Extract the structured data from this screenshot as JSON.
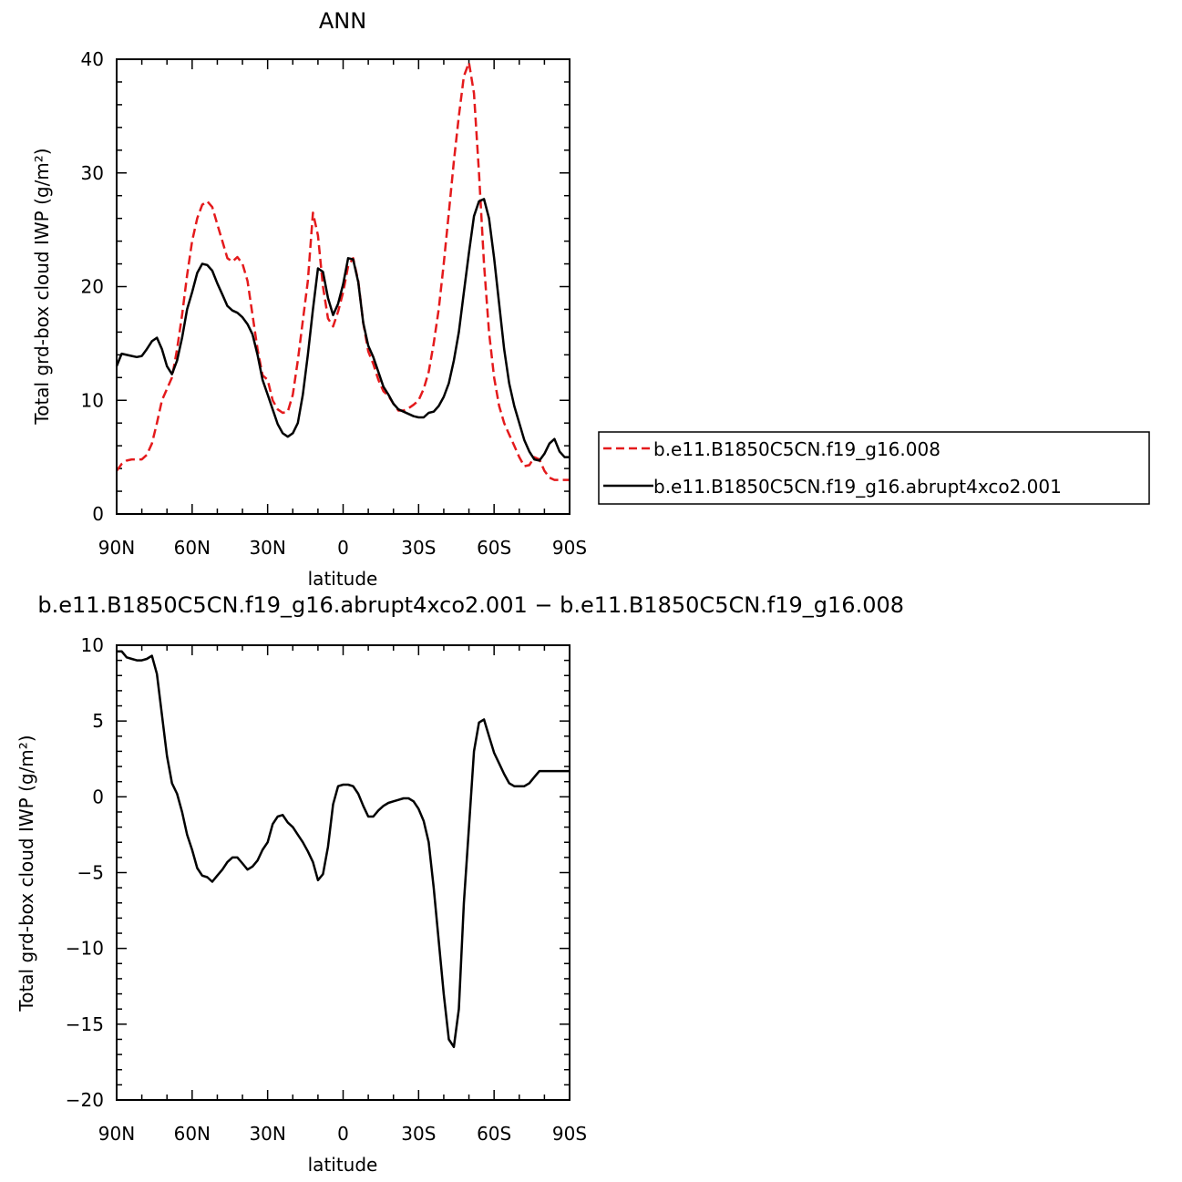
{
  "chart_data": [
    {
      "type": "line",
      "title": "ANN",
      "xlabel": "latitude",
      "ylabel": "Total grd-box cloud IWP (g/m²)",
      "ylim": [
        0,
        40
      ],
      "xlim": [
        90,
        -90
      ],
      "yticks": [
        0,
        10,
        20,
        30,
        40
      ],
      "xticks": [
        90,
        60,
        30,
        0,
        -30,
        -60,
        -90
      ],
      "xtick_labels": [
        "90N",
        "60N",
        "30N",
        "0",
        "30S",
        "60S",
        "90S"
      ],
      "legend": {
        "placement": "right"
      },
      "series": [
        {
          "name": "b.e11.B1850C5CN.f19_g16.008",
          "color": "#e41a1c",
          "style": "dashed",
          "x": [
            90,
            88,
            86,
            84,
            82,
            80,
            78,
            76,
            74,
            72,
            70,
            68,
            66,
            64,
            62,
            60,
            58,
            56,
            54,
            52,
            50,
            48,
            46,
            44,
            42,
            40,
            38,
            36,
            34,
            32,
            30,
            28,
            26,
            24,
            22,
            20,
            18,
            16,
            14,
            12,
            10,
            8,
            6,
            4,
            2,
            0,
            -2,
            -4,
            -6,
            -8,
            -10,
            -12,
            -14,
            -16,
            -18,
            -20,
            -22,
            -24,
            -26,
            -28,
            -30,
            -32,
            -34,
            -36,
            -38,
            -40,
            -42,
            -44,
            -46,
            -48,
            -50,
            -52,
            -54,
            -56,
            -58,
            -60,
            -62,
            -64,
            -66,
            -68,
            -70,
            -72,
            -74,
            -76,
            -78,
            -80,
            -82,
            -84,
            -86,
            -88,
            -90
          ],
          "values": [
            3.8,
            4.4,
            4.7,
            4.8,
            4.8,
            4.8,
            5.2,
            6.2,
            8,
            10,
            11,
            12,
            14.5,
            17.5,
            21,
            24,
            26,
            27.2,
            27.5,
            27,
            25.5,
            24,
            22.5,
            22.2,
            22.6,
            22,
            20.5,
            17.5,
            14.5,
            12.2,
            11.8,
            10,
            9.2,
            8.9,
            9,
            10.5,
            13.5,
            17,
            20.5,
            26.5,
            24.5,
            20,
            17.2,
            16.5,
            17.8,
            19.5,
            21.8,
            22.5,
            20.5,
            16.8,
            14.3,
            13.2,
            11.8,
            10.8,
            10.4,
            9.7,
            9.1,
            9.1,
            9.3,
            9.6,
            10,
            11,
            12.5,
            15,
            18,
            22,
            26.5,
            31,
            35,
            38.5,
            39.7,
            37,
            30,
            22,
            16,
            12,
            9.5,
            8,
            7,
            6,
            5,
            4.2,
            4.3,
            5,
            4.8,
            3.8,
            3.2,
            3,
            3,
            3,
            3
          ],
          "values_note": ""
        },
        {
          "name": "b.e11.B1850C5CN.f19_g16.abrupt4xco2.001",
          "color": "#000000",
          "style": "solid",
          "x": [
            90,
            88,
            86,
            84,
            82,
            80,
            78,
            76,
            74,
            72,
            70,
            68,
            66,
            64,
            62,
            60,
            58,
            56,
            54,
            52,
            50,
            48,
            46,
            44,
            42,
            40,
            38,
            36,
            34,
            32,
            30,
            28,
            26,
            24,
            22,
            20,
            18,
            16,
            14,
            12,
            10,
            8,
            6,
            4,
            2,
            0,
            -2,
            -4,
            -6,
            -8,
            -10,
            -12,
            -14,
            -16,
            -18,
            -20,
            -22,
            -24,
            -26,
            -28,
            -30,
            -32,
            -34,
            -36,
            -38,
            -40,
            -42,
            -44,
            -46,
            -48,
            -50,
            -52,
            -54,
            -56,
            -58,
            -60,
            -62,
            -64,
            -66,
            -68,
            -70,
            -72,
            -74,
            -76,
            -78,
            -80,
            -82,
            -84,
            -86,
            -88,
            -90
          ],
          "values": [
            13,
            14.1,
            14,
            13.9,
            13.8,
            13.9,
            14.5,
            15.2,
            15.5,
            14.5,
            13,
            12.3,
            13.5,
            15.5,
            18,
            19.5,
            21.2,
            22,
            21.9,
            21.4,
            20.3,
            19.3,
            18.3,
            17.9,
            17.7,
            17.3,
            16.7,
            15.8,
            14,
            11.8,
            10.5,
            9.2,
            7.9,
            7.1,
            6.8,
            7.1,
            8,
            10.5,
            14,
            18,
            21.6,
            21.3,
            19,
            17.5,
            18.5,
            20.2,
            22.5,
            22.4,
            20.4,
            16.8,
            14.8,
            13.8,
            12.5,
            11.2,
            10.5,
            9.7,
            9.2,
            9,
            8.8,
            8.6,
            8.5,
            8.5,
            8.9,
            9,
            9.5,
            10.3,
            11.5,
            13.5,
            16,
            19.5,
            23,
            26.2,
            27.5,
            27.7,
            26,
            22.5,
            18.5,
            14.5,
            11.5,
            9.5,
            8,
            6.5,
            5.5,
            4.8,
            4.7,
            5.3,
            6.2,
            6.6,
            5.5,
            5,
            5
          ],
          "values_note": ""
        }
      ]
    },
    {
      "type": "line",
      "title": "b.e11.B1850C5CN.f19_g16.abrupt4xco2.001 − b.e11.B1850C5CN.f19_g16.008",
      "xlabel": "latitude",
      "ylabel": "Total grd-box cloud IWP (g/m²)",
      "ylim": [
        -20,
        10
      ],
      "xlim": [
        90,
        -90
      ],
      "yticks": [
        -20,
        -15,
        -10,
        -5,
        0,
        5,
        10
      ],
      "ytick_labels": [
        "−20",
        "−15",
        "−10",
        "−5",
        "0",
        "5",
        "10"
      ],
      "xticks": [
        90,
        60,
        30,
        0,
        -30,
        -60,
        -90
      ],
      "xtick_labels": [
        "90N",
        "60N",
        "30N",
        "0",
        "30S",
        "60S",
        "90S"
      ],
      "series": [
        {
          "color": "#000000",
          "style": "solid",
          "x": [
            90,
            88,
            86,
            84,
            82,
            80,
            78,
            76,
            74,
            72,
            70,
            68,
            66,
            64,
            62,
            60,
            58,
            56,
            54,
            52,
            50,
            48,
            46,
            44,
            42,
            40,
            38,
            36,
            34,
            32,
            30,
            28,
            26,
            24,
            22,
            20,
            18,
            16,
            14,
            12,
            10,
            8,
            6,
            4,
            2,
            0,
            -2,
            -4,
            -6,
            -8,
            -10,
            -12,
            -14,
            -16,
            -18,
            -20,
            -22,
            -24,
            -26,
            -28,
            -30,
            -32,
            -34,
            -36,
            -38,
            -40,
            -42,
            -44,
            -46,
            -48,
            -50,
            -52,
            -54,
            -56,
            -58,
            -60,
            -62,
            -64,
            -66,
            -68,
            -70,
            -72,
            -74,
            -76,
            -78,
            -80,
            -82,
            -84,
            -86,
            -88,
            -90
          ],
          "values": [
            9.6,
            9.6,
            9.2,
            9.1,
            9,
            9,
            9.1,
            9.3,
            8.1,
            5.4,
            2.7,
            0.9,
            0.2,
            -1,
            -2.5,
            -3.5,
            -4.7,
            -5.2,
            -5.3,
            -5.6,
            -5.2,
            -4.8,
            -4.3,
            -4,
            -4,
            -4.4,
            -4.8,
            -4.6,
            -4.2,
            -3.5,
            -3,
            -1.8,
            -1.3,
            -1.2,
            -1.7,
            -2,
            -2.5,
            -3,
            -3.6,
            -4.3,
            -5.5,
            -5.1,
            -3.3,
            -0.5,
            0.7,
            0.8,
            0.8,
            0.7,
            0.2,
            -0.6,
            -1.3,
            -1.3,
            -0.9,
            -0.6,
            -0.4,
            -0.3,
            -0.2,
            -0.1,
            -0.1,
            -0.3,
            -0.8,
            -1.6,
            -3,
            -6,
            -9.5,
            -13,
            -16,
            -16.5,
            -14,
            -7,
            -2,
            3,
            4.9,
            5.1,
            4,
            2.9,
            2.2,
            1.5,
            0.9,
            0.7,
            0.7,
            0.7,
            0.9,
            1.3,
            1.7,
            1.7,
            1.7,
            1.7,
            1.7,
            1.7,
            1.7
          ]
        }
      ]
    }
  ]
}
